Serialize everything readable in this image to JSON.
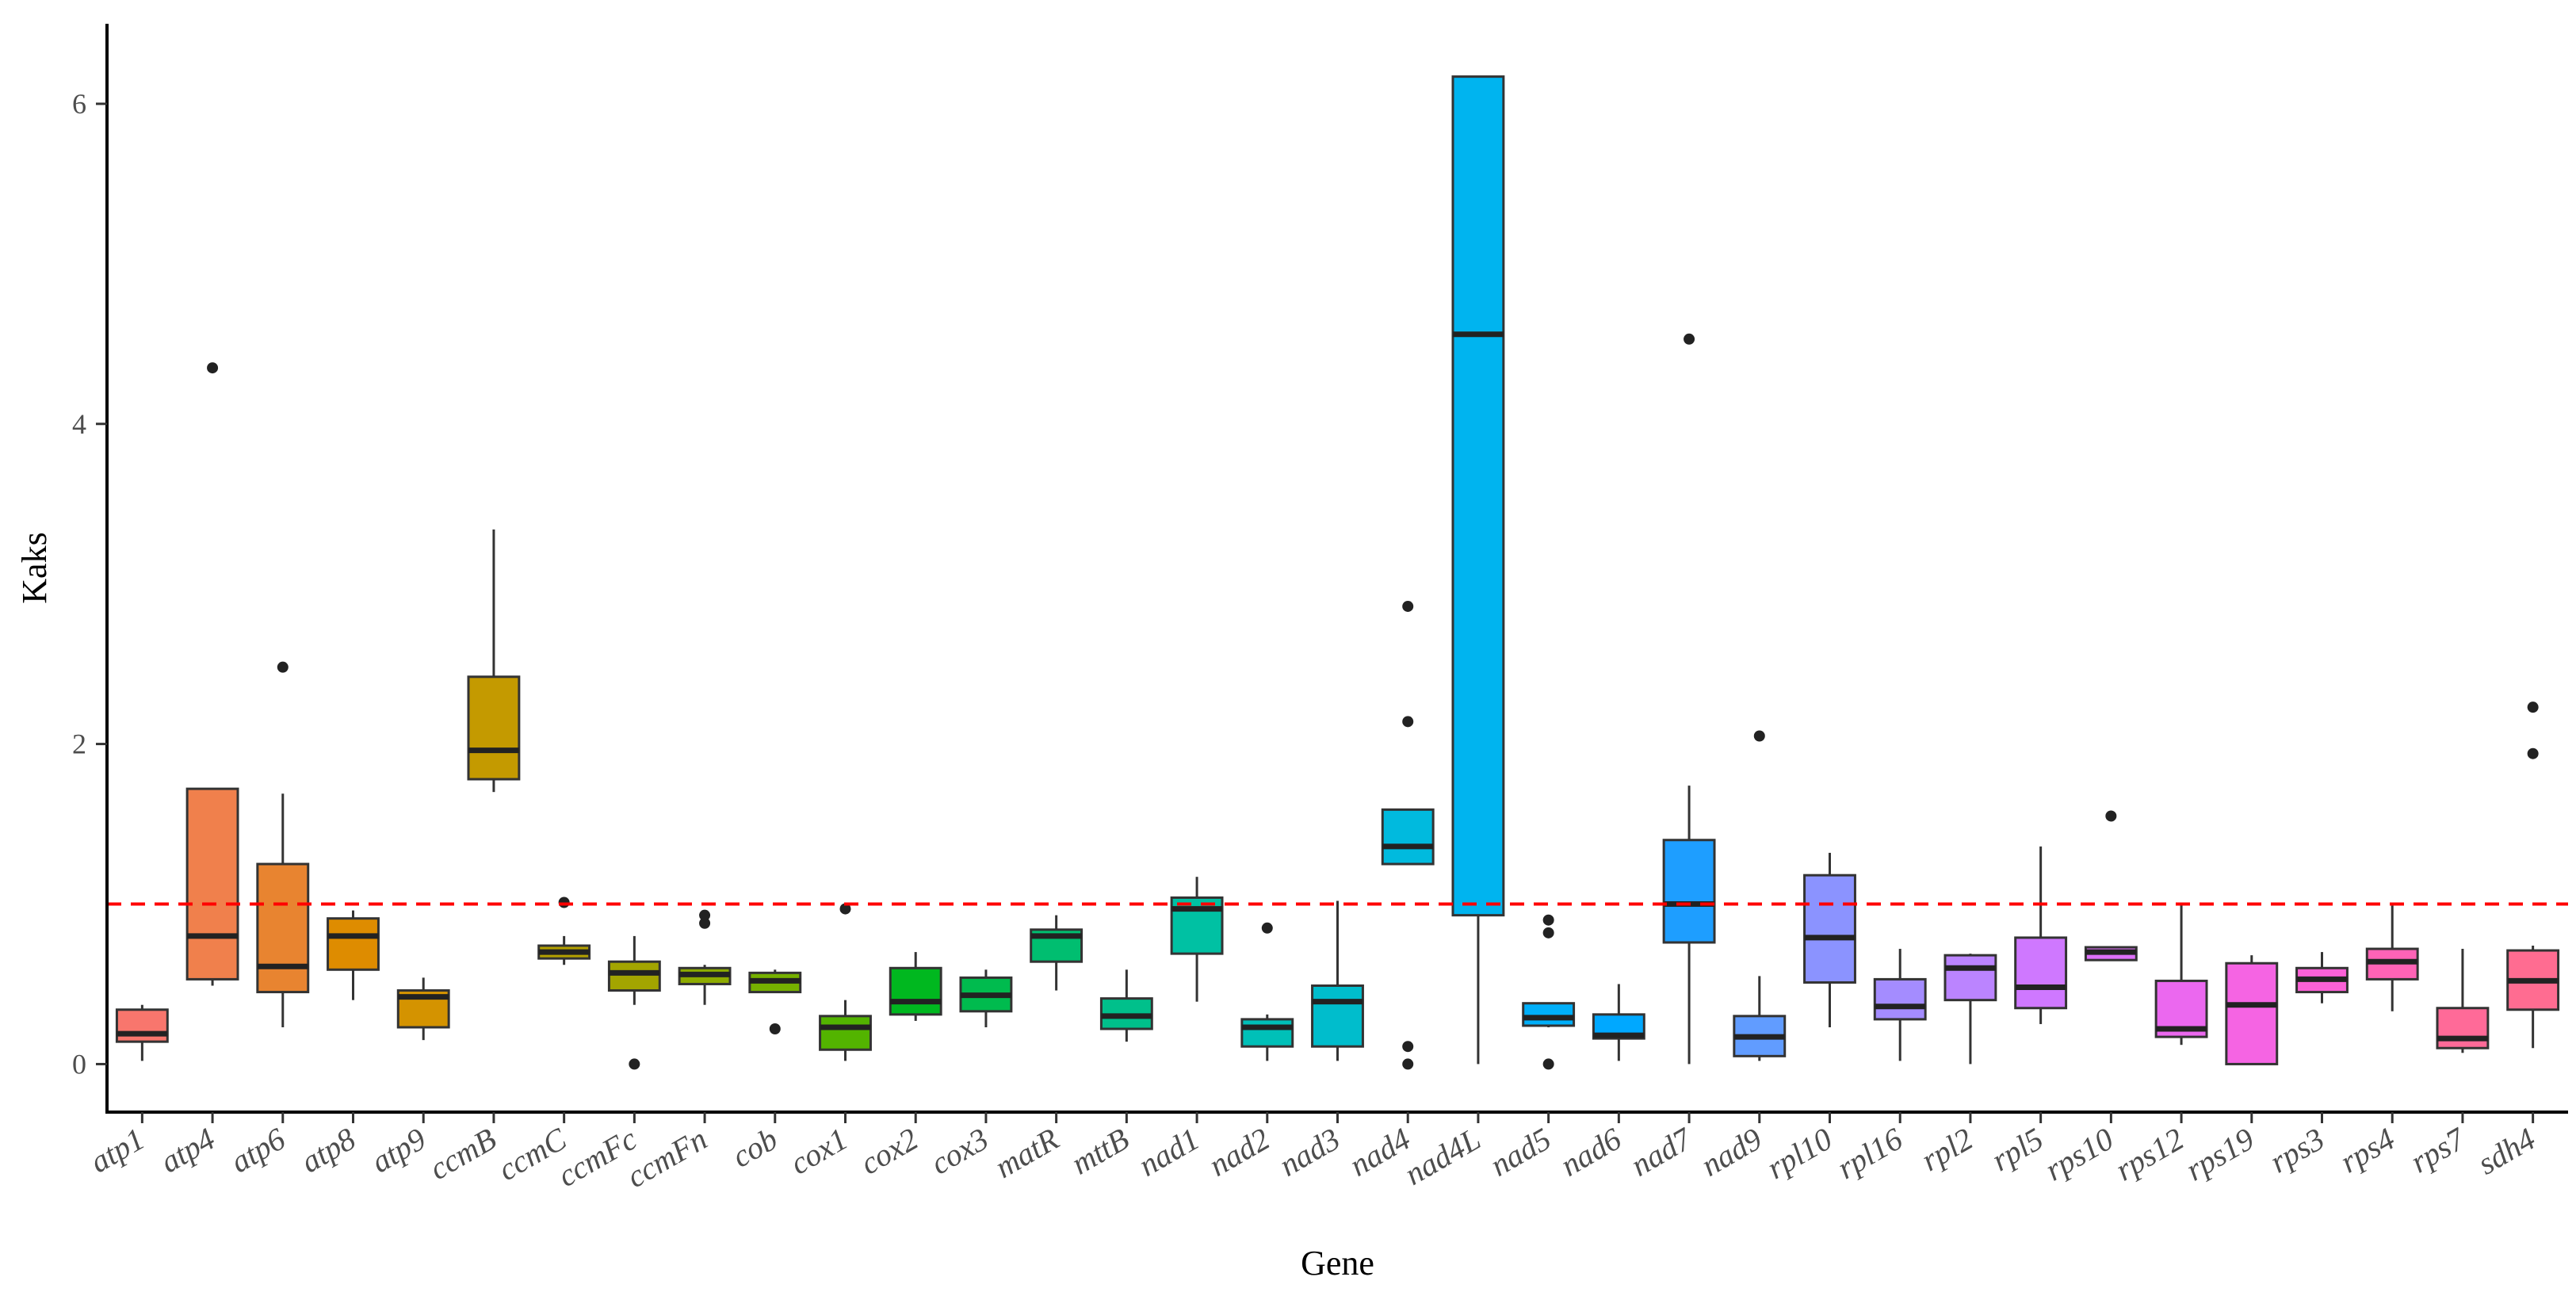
{
  "chart_data": {
    "type": "boxplot",
    "title": "",
    "xlabel": "Gene",
    "ylabel": "Kaks",
    "ylim": [
      -0.3,
      6.5
    ],
    "yticks": [
      0,
      2,
      4,
      6
    ],
    "reference_line": {
      "y": 1,
      "color": "#ff0000",
      "style": "dashed"
    },
    "categories": [
      "atp1",
      "atp4",
      "atp6",
      "atp8",
      "atp9",
      "ccmB",
      "ccmC",
      "ccmFc",
      "ccmFn",
      "cob",
      "cox1",
      "cox2",
      "cox3",
      "matR",
      "mttB",
      "nad1",
      "nad2",
      "nad3",
      "nad4",
      "nad4L",
      "nad5",
      "nad6",
      "nad7",
      "nad9",
      "rpl10",
      "rpl16",
      "rpl2",
      "rpl5",
      "rps10",
      "rps12",
      "rps19",
      "rps3",
      "rps4",
      "rps7",
      "sdh4"
    ],
    "boxes": [
      {
        "gene": "atp1",
        "lower": 0.02,
        "q1": 0.14,
        "median": 0.19,
        "q3": 0.34,
        "upper": 0.37,
        "outliers": [],
        "color": "#F8766D"
      },
      {
        "gene": "atp4",
        "lower": 0.49,
        "q1": 0.53,
        "median": 0.8,
        "q3": 1.72,
        "upper": 1.72,
        "outliers": [
          4.35
        ],
        "color": "#F0804C"
      },
      {
        "gene": "atp6",
        "lower": 0.23,
        "q1": 0.45,
        "median": 0.61,
        "q3": 1.25,
        "upper": 1.69,
        "outliers": [
          2.48
        ],
        "color": "#E88430"
      },
      {
        "gene": "atp8",
        "lower": 0.4,
        "q1": 0.59,
        "median": 0.8,
        "q3": 0.91,
        "upper": 0.96,
        "outliers": [],
        "color": "#DE8C00"
      },
      {
        "gene": "atp9",
        "lower": 0.15,
        "q1": 0.23,
        "median": 0.42,
        "q3": 0.46,
        "upper": 0.54,
        "outliers": [],
        "color": "#D49300"
      },
      {
        "gene": "ccmB",
        "lower": 1.7,
        "q1": 1.78,
        "median": 1.96,
        "q3": 2.42,
        "upper": 3.34,
        "outliers": [],
        "color": "#C49A00"
      },
      {
        "gene": "ccmC",
        "lower": 0.62,
        "q1": 0.66,
        "median": 0.7,
        "q3": 0.74,
        "upper": 0.8,
        "outliers": [
          1.01
        ],
        "color": "#B3A000"
      },
      {
        "gene": "ccmFc",
        "lower": 0.37,
        "q1": 0.46,
        "median": 0.57,
        "q3": 0.64,
        "upper": 0.8,
        "outliers": [
          0.0
        ],
        "color": "#A3A500"
      },
      {
        "gene": "ccmFn",
        "lower": 0.37,
        "q1": 0.5,
        "median": 0.56,
        "q3": 0.6,
        "upper": 0.62,
        "outliers": [
          0.88,
          0.93
        ],
        "color": "#8EAB00"
      },
      {
        "gene": "cob",
        "lower": 0.45,
        "q1": 0.45,
        "median": 0.52,
        "q3": 0.57,
        "upper": 0.59,
        "outliers": [
          0.22
        ],
        "color": "#76B100"
      },
      {
        "gene": "cox1",
        "lower": 0.02,
        "q1": 0.09,
        "median": 0.23,
        "q3": 0.3,
        "upper": 0.4,
        "outliers": [
          0.97
        ],
        "color": "#53B400"
      },
      {
        "gene": "cox2",
        "lower": 0.27,
        "q1": 0.31,
        "median": 0.39,
        "q3": 0.6,
        "upper": 0.7,
        "outliers": [],
        "color": "#00B81F"
      },
      {
        "gene": "cox3",
        "lower": 0.23,
        "q1": 0.33,
        "median": 0.43,
        "q3": 0.54,
        "upper": 0.59,
        "outliers": [],
        "color": "#00BB4E"
      },
      {
        "gene": "matR",
        "lower": 0.46,
        "q1": 0.64,
        "median": 0.8,
        "q3": 0.84,
        "upper": 0.93,
        "outliers": [],
        "color": "#00BE70"
      },
      {
        "gene": "mttB",
        "lower": 0.14,
        "q1": 0.22,
        "median": 0.3,
        "q3": 0.41,
        "upper": 0.59,
        "outliers": [],
        "color": "#00C08B"
      },
      {
        "gene": "nad1",
        "lower": 0.39,
        "q1": 0.69,
        "median": 0.97,
        "q3": 1.04,
        "upper": 1.17,
        "outliers": [],
        "color": "#00C1A3"
      },
      {
        "gene": "nad2",
        "lower": 0.02,
        "q1": 0.11,
        "median": 0.23,
        "q3": 0.28,
        "upper": 0.31,
        "outliers": [
          0.85
        ],
        "color": "#00C0B8"
      },
      {
        "gene": "nad3",
        "lower": 0.02,
        "q1": 0.11,
        "median": 0.39,
        "q3": 0.49,
        "upper": 1.02,
        "outliers": [],
        "color": "#00BDCC"
      },
      {
        "gene": "nad4",
        "lower": 1.25,
        "q1": 1.25,
        "median": 1.36,
        "q3": 1.59,
        "upper": 1.59,
        "outliers": [
          2.86,
          2.14,
          0.11,
          0.0
        ],
        "color": "#00BADE"
      },
      {
        "gene": "nad4L",
        "lower": 0.0,
        "q1": 0.93,
        "median": 4.56,
        "q3": 6.17,
        "upper": 6.17,
        "outliers": [],
        "color": "#00B4EF"
      },
      {
        "gene": "nad5",
        "lower": 0.23,
        "q1": 0.24,
        "median": 0.29,
        "q3": 0.38,
        "upper": 0.38,
        "outliers": [
          0.9,
          0.82,
          0.0
        ],
        "color": "#00AFF9"
      },
      {
        "gene": "nad6",
        "lower": 0.02,
        "q1": 0.16,
        "median": 0.18,
        "q3": 0.31,
        "upper": 0.5,
        "outliers": [],
        "color": "#00A8FF"
      },
      {
        "gene": "nad7",
        "lower": 0.0,
        "q1": 0.76,
        "median": 1.0,
        "q3": 1.4,
        "upper": 1.74,
        "outliers": [
          4.53
        ],
        "color": "#1E9EFF"
      },
      {
        "gene": "nad9",
        "lower": 0.02,
        "q1": 0.05,
        "median": 0.17,
        "q3": 0.3,
        "upper": 0.55,
        "outliers": [
          2.05
        ],
        "color": "#619CFF"
      },
      {
        "gene": "rpl10",
        "lower": 0.23,
        "q1": 0.51,
        "median": 0.79,
        "q3": 1.18,
        "upper": 1.32,
        "outliers": [],
        "color": "#8B93FF"
      },
      {
        "gene": "rpl16",
        "lower": 0.02,
        "q1": 0.28,
        "median": 0.36,
        "q3": 0.53,
        "upper": 0.72,
        "outliers": [],
        "color": "#A48CFF"
      },
      {
        "gene": "rpl2",
        "lower": 0.0,
        "q1": 0.4,
        "median": 0.6,
        "q3": 0.68,
        "upper": 0.69,
        "outliers": [],
        "color": "#BB84FF"
      },
      {
        "gene": "rpl5",
        "lower": 0.25,
        "q1": 0.35,
        "median": 0.48,
        "q3": 0.79,
        "upper": 1.36,
        "outliers": [],
        "color": "#CF78FF"
      },
      {
        "gene": "rps10",
        "lower": 0.65,
        "q1": 0.65,
        "median": 0.7,
        "q3": 0.73,
        "upper": 0.73,
        "outliers": [
          1.55
        ],
        "color": "#DE70F9"
      },
      {
        "gene": "rps12",
        "lower": 0.12,
        "q1": 0.17,
        "median": 0.22,
        "q3": 0.52,
        "upper": 1.0,
        "outliers": [],
        "color": "#EB68EF"
      },
      {
        "gene": "rps19",
        "lower": 0.0,
        "q1": 0.0,
        "median": 0.37,
        "q3": 0.63,
        "upper": 0.68,
        "outliers": [],
        "color": "#F564E3"
      },
      {
        "gene": "rps3",
        "lower": 0.38,
        "q1": 0.45,
        "median": 0.53,
        "q3": 0.6,
        "upper": 0.7,
        "outliers": [],
        "color": "#FB61D7"
      },
      {
        "gene": "rps4",
        "lower": 0.33,
        "q1": 0.53,
        "median": 0.64,
        "q3": 0.72,
        "upper": 0.99,
        "outliers": [],
        "color": "#FF63B6"
      },
      {
        "gene": "rps7",
        "lower": 0.07,
        "q1": 0.1,
        "median": 0.16,
        "q3": 0.35,
        "upper": 0.72,
        "outliers": [],
        "color": "#FF6A98"
      },
      {
        "gene": "sdh4",
        "lower": 0.1,
        "q1": 0.34,
        "median": 0.52,
        "q3": 0.71,
        "upper": 0.74,
        "outliers": [
          2.23,
          1.94
        ],
        "color": "#FF6C91"
      }
    ]
  }
}
